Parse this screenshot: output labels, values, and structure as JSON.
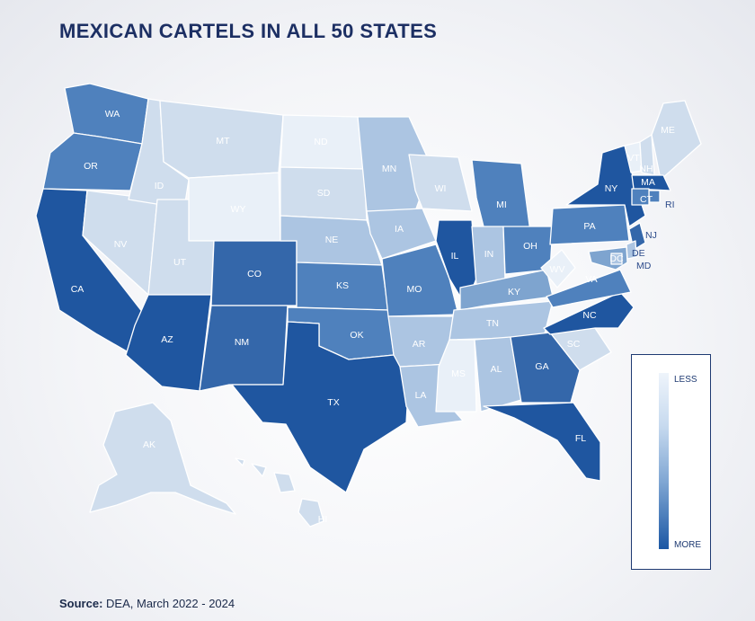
{
  "title": "MEXICAN CARTELS IN ALL 50 STATES",
  "source": {
    "label": "Source:",
    "text": "DEA, March 2022 - 2024"
  },
  "legend": {
    "less": "LESS",
    "more": "MORE"
  },
  "colors": {
    "level1": "#e9f0f8",
    "level2": "#cfdded",
    "level3": "#acc5e2",
    "level4": "#7ea4cf",
    "level5": "#4f81bd",
    "level6": "#3467aa",
    "level7": "#1f56a0"
  },
  "states": [
    {
      "abbr": "WA",
      "level": 5
    },
    {
      "abbr": "OR",
      "level": 5
    },
    {
      "abbr": "CA",
      "level": 7
    },
    {
      "abbr": "NV",
      "level": 2
    },
    {
      "abbr": "ID",
      "level": 2
    },
    {
      "abbr": "MT",
      "level": 2
    },
    {
      "abbr": "WY",
      "level": 1
    },
    {
      "abbr": "UT",
      "level": 2
    },
    {
      "abbr": "AZ",
      "level": 7
    },
    {
      "abbr": "CO",
      "level": 6
    },
    {
      "abbr": "NM",
      "level": 6
    },
    {
      "abbr": "ND",
      "level": 1
    },
    {
      "abbr": "SD",
      "level": 2
    },
    {
      "abbr": "NE",
      "level": 3
    },
    {
      "abbr": "KS",
      "level": 5
    },
    {
      "abbr": "OK",
      "level": 5
    },
    {
      "abbr": "TX",
      "level": 7
    },
    {
      "abbr": "MN",
      "level": 3
    },
    {
      "abbr": "IA",
      "level": 3
    },
    {
      "abbr": "MO",
      "level": 5
    },
    {
      "abbr": "AR",
      "level": 3
    },
    {
      "abbr": "LA",
      "level": 3
    },
    {
      "abbr": "WI",
      "level": 2
    },
    {
      "abbr": "IL",
      "level": 7
    },
    {
      "abbr": "MI",
      "level": 5
    },
    {
      "abbr": "IN",
      "level": 3
    },
    {
      "abbr": "OH",
      "level": 5
    },
    {
      "abbr": "KY",
      "level": 4
    },
    {
      "abbr": "TN",
      "level": 3
    },
    {
      "abbr": "MS",
      "level": 1
    },
    {
      "abbr": "AL",
      "level": 3
    },
    {
      "abbr": "GA",
      "level": 6
    },
    {
      "abbr": "FL",
      "level": 7
    },
    {
      "abbr": "SC",
      "level": 2
    },
    {
      "abbr": "NC",
      "level": 7
    },
    {
      "abbr": "VA",
      "level": 5
    },
    {
      "abbr": "WV",
      "level": 1
    },
    {
      "abbr": "PA",
      "level": 5
    },
    {
      "abbr": "NY",
      "level": 7
    },
    {
      "abbr": "VT",
      "level": 1
    },
    {
      "abbr": "NH",
      "level": 2
    },
    {
      "abbr": "ME",
      "level": 2
    },
    {
      "abbr": "MA",
      "level": 7
    },
    {
      "abbr": "RI",
      "level": 5
    },
    {
      "abbr": "CT",
      "level": 5
    },
    {
      "abbr": "NJ",
      "level": 6
    },
    {
      "abbr": "DE",
      "level": 3
    },
    {
      "abbr": "MD",
      "level": 4
    },
    {
      "abbr": "DC",
      "level": 3
    },
    {
      "abbr": "AK",
      "level": 2
    },
    {
      "abbr": "HI",
      "level": 2
    }
  ]
}
